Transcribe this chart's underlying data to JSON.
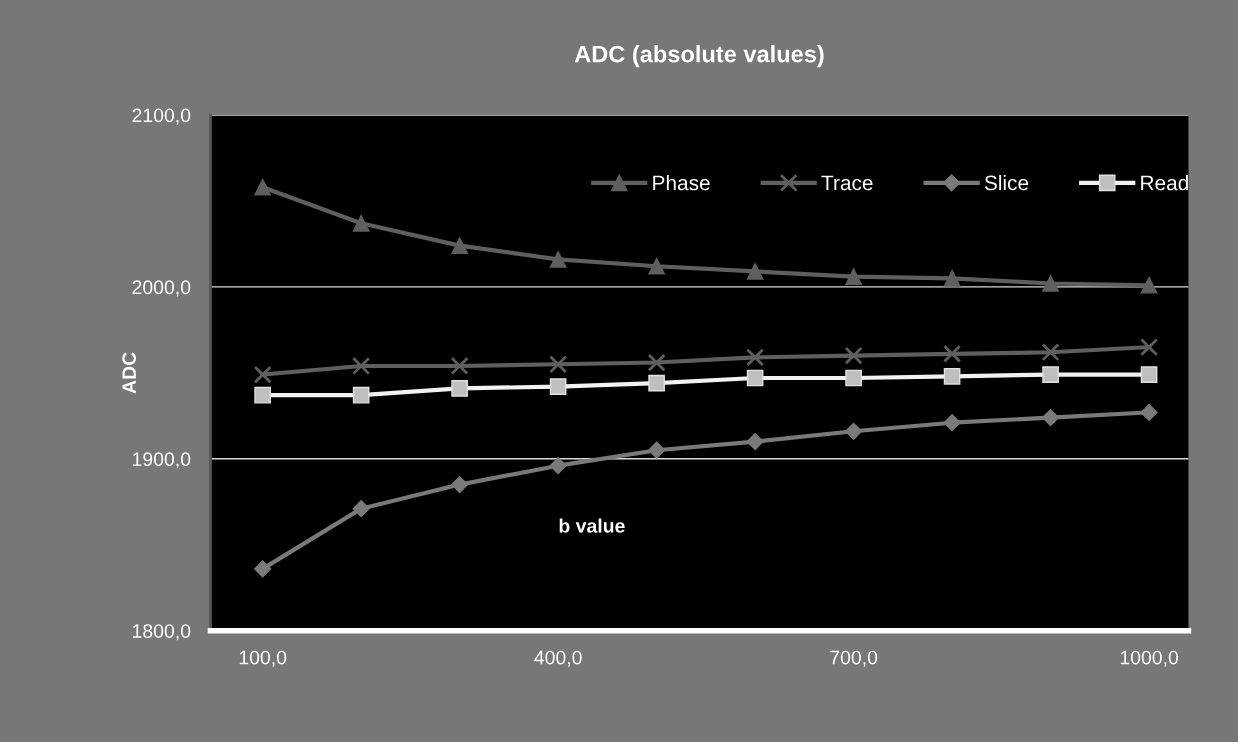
{
  "chart_data": {
    "type": "line",
    "title": "ADC (absolute values)",
    "xlabel": "b value",
    "ylabel": "ADC",
    "x": [
      100,
      200,
      300,
      400,
      500,
      600,
      700,
      800,
      900,
      1000
    ],
    "series": [
      {
        "name": "Phase",
        "color": "#5f5f5f",
        "marker": "triangle",
        "values": [
          2058,
          2037,
          2024,
          2016,
          2012,
          2009,
          2006,
          2005,
          2002,
          2001
        ]
      },
      {
        "name": "Trace",
        "color": "#5f5f5f",
        "marker": "cross",
        "values": [
          1949,
          1954,
          1954,
          1955,
          1956,
          1959,
          1960,
          1961,
          1962,
          1965
        ]
      },
      {
        "name": "Slice",
        "color": "#7a7a7a",
        "marker": "diamond",
        "values": [
          1836,
          1871,
          1885,
          1896,
          1905,
          1910,
          1916,
          1921,
          1924,
          1927
        ]
      },
      {
        "name": "Read",
        "color": "#f2f2f2",
        "marker": "square",
        "values": [
          1937,
          1937,
          1941,
          1942,
          1944,
          1947,
          1947,
          1948,
          1949,
          1949
        ]
      }
    ],
    "xlim": [
      47,
      1040
    ],
    "xticks": [
      {
        "value": 100,
        "label": "100,0"
      },
      {
        "value": 400,
        "label": "400,0"
      },
      {
        "value": 700,
        "label": "700,0"
      },
      {
        "value": 1000,
        "label": "1000,0"
      }
    ],
    "ylim": [
      1800,
      2100
    ],
    "yticks": [
      {
        "value": 1800,
        "label": "1800,0"
      },
      {
        "value": 1900,
        "label": "1900,0"
      },
      {
        "value": 2000,
        "label": "2000,0"
      },
      {
        "value": 2100,
        "label": "2100,0"
      }
    ],
    "grid": "y",
    "legend": "top right"
  }
}
